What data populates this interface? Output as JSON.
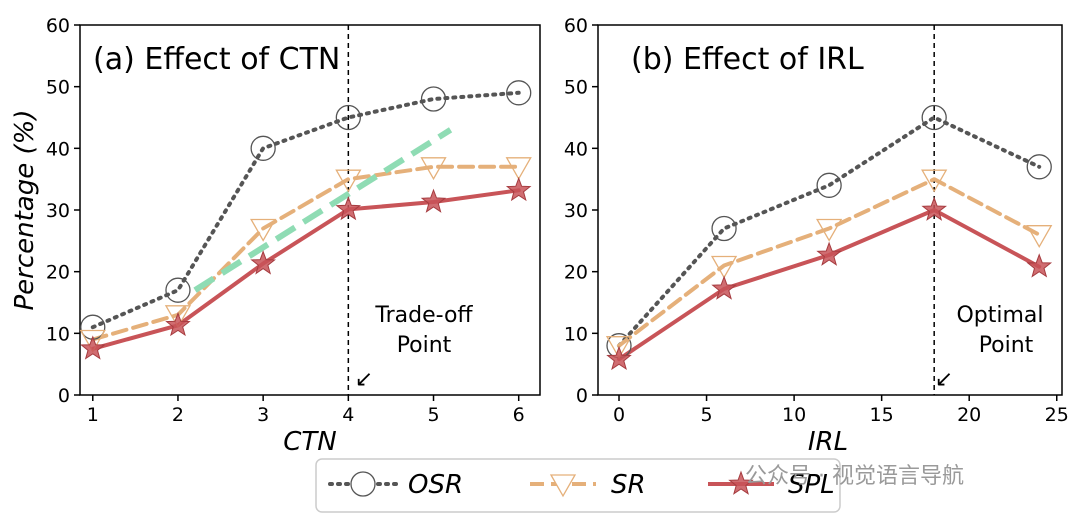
{
  "colors": {
    "osr": "#555555",
    "sr": "#e5b07a",
    "spl": "#c85458",
    "trend": "#8fdcb4",
    "axis": "#000000"
  },
  "legend": {
    "osr_label": "OSR",
    "sr_label": "SR",
    "spl_label": "SPL"
  },
  "watermark": "公众号 · 视觉语言导航",
  "chart_data": [
    {
      "type": "line",
      "title": "(a) Effect of CTN",
      "xlabel": "CTN",
      "ylabel": "Percentage (%)",
      "xlim": [
        0.85,
        6.25
      ],
      "ylim": [
        0,
        60
      ],
      "xticks": [
        1,
        2,
        3,
        4,
        5,
        6
      ],
      "yticks": [
        0,
        10,
        20,
        30,
        40,
        50,
        60
      ],
      "x": [
        1,
        2,
        3,
        4,
        5,
        6
      ],
      "series": [
        {
          "name": "OSR",
          "values": [
            11,
            17,
            40,
            45,
            48,
            49
          ]
        },
        {
          "name": "SR",
          "values": [
            9,
            13,
            27,
            35,
            37,
            37
          ]
        },
        {
          "name": "SPL",
          "values": [
            7.5,
            11.3,
            21.3,
            30.1,
            31.3,
            33.2
          ]
        }
      ],
      "trend_line": {
        "x": [
          2.2,
          5.2
        ],
        "y": [
          17,
          43
        ]
      },
      "vline_x": 4,
      "annotation": {
        "line1": "Trade-off",
        "line2": "Point",
        "arrow": "↙"
      }
    },
    {
      "type": "line",
      "title": "(b) Effect of IRL",
      "xlabel": "IRL",
      "ylabel": "",
      "xlim": [
        -1.2,
        25.3
      ],
      "ylim": [
        0,
        60
      ],
      "xticks": [
        0,
        5,
        10,
        15,
        20,
        25
      ],
      "yticks": [
        0,
        10,
        20,
        30,
        40,
        50,
        60
      ],
      "x": [
        0,
        6,
        12,
        18,
        24
      ],
      "series": [
        {
          "name": "OSR",
          "values": [
            8,
            27,
            34,
            45,
            37
          ]
        },
        {
          "name": "SR",
          "values": [
            8,
            21,
            27,
            35,
            26
          ]
        },
        {
          "name": "SPL",
          "values": [
            5.8,
            17.2,
            22.7,
            30,
            20.8
          ]
        }
      ],
      "vline_x": 18,
      "annotation": {
        "line1": "Optimal",
        "line2": "Point",
        "arrow": "↙"
      }
    }
  ]
}
